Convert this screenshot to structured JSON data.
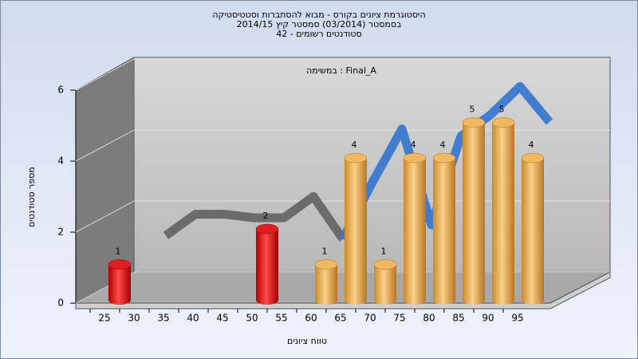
{
  "chart_data": {
    "type": "bar3d",
    "title": "היסטוגרמת ציונים בקורס - מבוא להסתברות וסטטיסטיקה",
    "subtitle": "בסמסטר  (03/2014)  סמסטר קיץ 2014/15",
    "subtitle2": "סטודנטים רשומים - 42",
    "annotation": "במשימה : Final_A",
    "x_label": "טווח ציונים",
    "y_label": "מספר סטודנטים",
    "categories": [
      25,
      30,
      35,
      40,
      45,
      50,
      55,
      60,
      65,
      70,
      75,
      80,
      85,
      90,
      95
    ],
    "values": [
      1,
      0,
      0,
      0,
      0,
      2,
      0,
      1,
      4,
      1,
      4,
      4,
      5,
      5,
      4
    ],
    "colors": [
      "red",
      "red",
      "red",
      "red",
      "red",
      "red",
      "orange",
      "orange",
      "orange",
      "orange",
      "orange",
      "orange",
      "orange",
      "orange",
      "orange"
    ],
    "curves": [
      {
        "color": "#666666",
        "values": [
          null,
          1.5,
          2.1,
          2.1,
          2.0,
          2.0,
          2.6,
          1.4,
          null,
          null,
          null,
          null,
          null,
          null,
          null
        ]
      },
      {
        "color": "#3a78d0",
        "values": [
          null,
          null,
          null,
          null,
          null,
          null,
          null,
          1.4,
          3.0,
          4.5,
          1.8,
          4.3,
          4.9,
          5.7,
          4.7
        ]
      }
    ],
    "ylim": [
      0,
      6
    ],
    "yticks": [
      0,
      2,
      4,
      6
    ],
    "grid": true
  }
}
